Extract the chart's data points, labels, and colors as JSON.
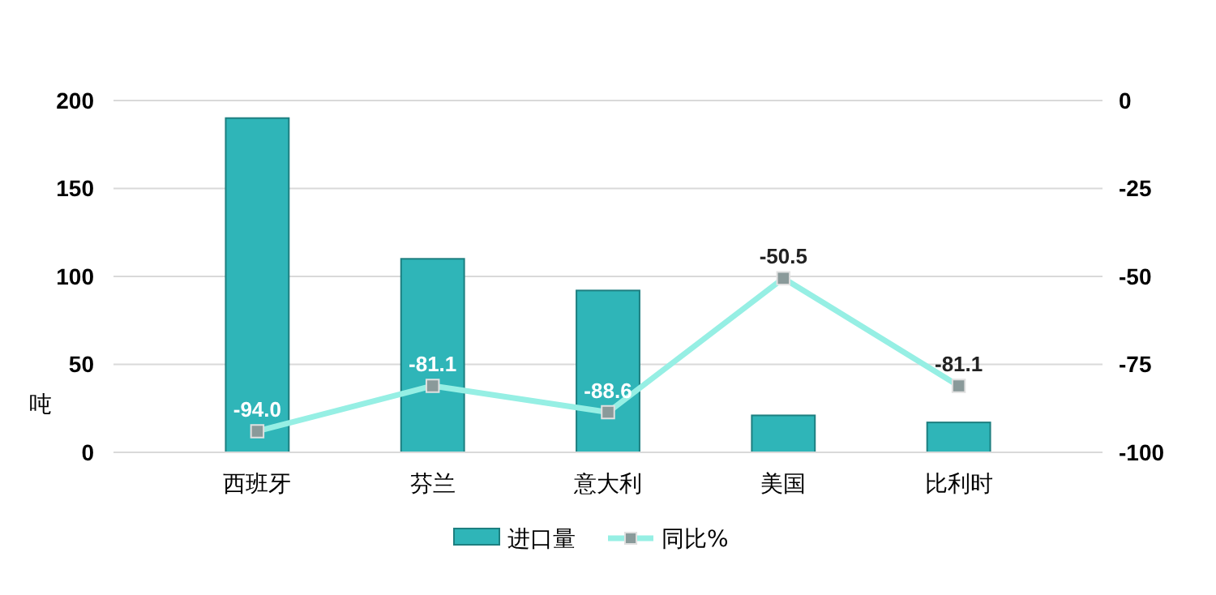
{
  "chart_data": {
    "type": "bar",
    "ylabel": "吨",
    "categories": [
      "西班牙",
      "芬兰",
      "意大利",
      "美国",
      "比利时"
    ],
    "series": [
      {
        "name": "进口量",
        "color": "#2fb5b8",
        "values": [
          190,
          110,
          92,
          21,
          17
        ]
      },
      {
        "name": "同比%",
        "type": "line",
        "axis": "y2",
        "color": "#96efe4",
        "marker": "square",
        "values": [
          -94.0,
          -81.1,
          -88.6,
          -50.5,
          -81.1
        ],
        "value_labels": [
          "-94.0",
          "-81.1",
          "-88.6",
          "-50.5",
          "-81.1"
        ]
      }
    ],
    "ylim": [
      0,
      200
    ],
    "yticks": [
      0,
      50,
      100,
      150,
      200
    ],
    "y2lim": [
      -100,
      0
    ],
    "y2ticks": [
      -100,
      -75,
      -50,
      -25,
      0
    ],
    "grid": "y",
    "legend": "bottom"
  }
}
